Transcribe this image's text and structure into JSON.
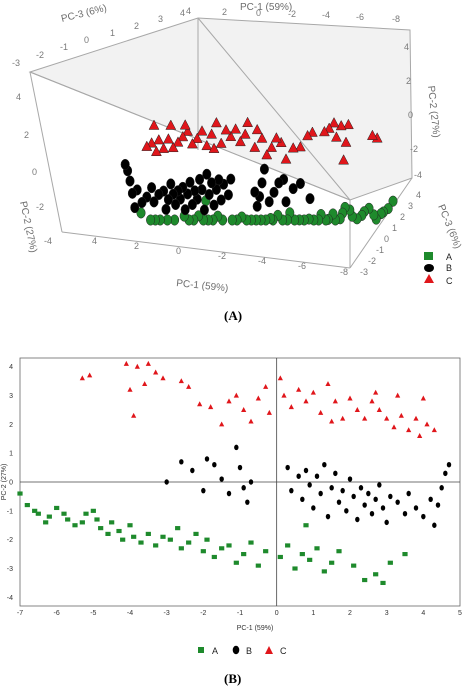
{
  "captions": {
    "a": "(A)",
    "b": "(B)"
  },
  "colors": {
    "A": "#1e8a2c",
    "B": "#000000",
    "C": "#e0161b"
  },
  "legend": [
    {
      "key": "A",
      "label": "A",
      "marker": "square"
    },
    {
      "key": "B",
      "label": "B",
      "marker": "circle"
    },
    {
      "key": "C",
      "label": "C",
      "marker": "triangle"
    }
  ],
  "chart_data": [
    {
      "type": "scatter",
      "projection": "3d",
      "axis_labels": {
        "pc1_top": "PC-1 (59%)",
        "pc1_bottom": "PC-1 (59%)",
        "pc3_top": "PC-3 (6%)",
        "pc3_right": "PC-3 (6%)",
        "pc2_left": "PC-2 (27%)",
        "pc2_right": "PC-2 (27%)"
      },
      "ticks": {
        "pc1_top": [
          "4",
          "2",
          "0",
          "-2",
          "-4",
          "-6",
          "-8"
        ],
        "pc1_bottom": [
          "4",
          "2",
          "0",
          "-2",
          "-4",
          "-6",
          "-8"
        ],
        "pc3_top": [
          "-3",
          "-2",
          "-1",
          "0",
          "1",
          "2",
          "3",
          "4"
        ],
        "pc3_right": [
          "4",
          "3",
          "2",
          "1",
          "0",
          "-1",
          "-2",
          "-3"
        ],
        "pc2_left": [
          "4",
          "2",
          "0",
          "-2",
          "-4"
        ],
        "pc2_right": [
          "4",
          "2",
          "0",
          "-2",
          "-4"
        ]
      },
      "legend_placement": "bottom-right"
    },
    {
      "type": "scatter",
      "xlabel": "PC-1 (59%)",
      "ylabel": "PC-2 (27%)",
      "xlim": [
        -7,
        5
      ],
      "ylim": [
        -4.3,
        4.3
      ],
      "xticks": [
        -7,
        -6,
        -5,
        -4,
        -3,
        -2,
        -1,
        0,
        1,
        2,
        3,
        4,
        5
      ],
      "yticks": [
        4,
        3,
        2,
        1,
        0,
        -1,
        -2,
        -3,
        -4
      ],
      "reference_lines": {
        "x": 0,
        "y": 0
      },
      "legend_placement": "bottom-center",
      "series": [
        {
          "name": "A",
          "marker": "square",
          "color": "#1e8a2c",
          "points": [
            [
              -7.0,
              -0.4
            ],
            [
              -6.8,
              -0.8
            ],
            [
              -6.6,
              -1.0
            ],
            [
              -6.5,
              -1.1
            ],
            [
              -6.3,
              -1.4
            ],
            [
              -6.2,
              -1.2
            ],
            [
              -6.0,
              -0.9
            ],
            [
              -5.8,
              -1.1
            ],
            [
              -5.7,
              -1.3
            ],
            [
              -5.5,
              -1.5
            ],
            [
              -5.3,
              -1.4
            ],
            [
              -5.2,
              -1.1
            ],
            [
              -5.0,
              -1.0
            ],
            [
              -4.9,
              -1.3
            ],
            [
              -4.8,
              -1.6
            ],
            [
              -4.6,
              -1.8
            ],
            [
              -4.5,
              -1.4
            ],
            [
              -4.3,
              -1.7
            ],
            [
              -4.2,
              -2.0
            ],
            [
              -4.0,
              -1.5
            ],
            [
              -3.9,
              -1.9
            ],
            [
              -3.7,
              -2.1
            ],
            [
              -3.5,
              -1.8
            ],
            [
              -3.3,
              -2.2
            ],
            [
              -3.1,
              -1.9
            ],
            [
              -2.9,
              -2.0
            ],
            [
              -2.7,
              -1.6
            ],
            [
              -2.6,
              -2.3
            ],
            [
              -2.4,
              -2.1
            ],
            [
              -2.2,
              -1.8
            ],
            [
              -2.0,
              -2.4
            ],
            [
              -1.9,
              -2.0
            ],
            [
              -1.7,
              -2.6
            ],
            [
              -1.5,
              -2.3
            ],
            [
              -1.3,
              -2.2
            ],
            [
              -1.1,
              -2.8
            ],
            [
              -0.9,
              -2.5
            ],
            [
              -0.7,
              -2.1
            ],
            [
              -0.5,
              -2.9
            ],
            [
              -0.3,
              -2.4
            ],
            [
              0.1,
              -2.6
            ],
            [
              0.3,
              -2.2
            ],
            [
              0.5,
              -3.0
            ],
            [
              0.7,
              -2.5
            ],
            [
              0.9,
              -2.7
            ],
            [
              1.1,
              -2.3
            ],
            [
              1.3,
              -3.1
            ],
            [
              1.5,
              -2.8
            ],
            [
              1.7,
              -2.4
            ],
            [
              2.1,
              -2.9
            ],
            [
              2.4,
              -3.4
            ],
            [
              2.7,
              -3.2
            ],
            [
              2.9,
              -3.5
            ],
            [
              3.1,
              -2.8
            ],
            [
              3.5,
              -2.5
            ],
            [
              0.8,
              -1.5
            ]
          ]
        },
        {
          "name": "B",
          "marker": "circle",
          "color": "#000000",
          "points": [
            [
              -3.0,
              0.0
            ],
            [
              -2.6,
              0.7
            ],
            [
              -2.3,
              0.4
            ],
            [
              -2.0,
              -0.3
            ],
            [
              -1.9,
              0.8
            ],
            [
              -1.7,
              0.6
            ],
            [
              -1.5,
              0.1
            ],
            [
              -1.3,
              -0.4
            ],
            [
              -1.1,
              1.2
            ],
            [
              -1.0,
              0.5
            ],
            [
              -0.9,
              -0.2
            ],
            [
              -0.8,
              -0.7
            ],
            [
              -0.7,
              0.0
            ],
            [
              0.3,
              0.5
            ],
            [
              0.4,
              -0.3
            ],
            [
              0.6,
              0.2
            ],
            [
              0.7,
              -0.6
            ],
            [
              0.8,
              0.4
            ],
            [
              0.9,
              -0.1
            ],
            [
              1.0,
              -0.9
            ],
            [
              1.1,
              0.2
            ],
            [
              1.2,
              -0.4
            ],
            [
              1.3,
              0.6
            ],
            [
              1.4,
              -1.2
            ],
            [
              1.5,
              -0.2
            ],
            [
              1.6,
              0.3
            ],
            [
              1.7,
              -0.7
            ],
            [
              1.8,
              -0.3
            ],
            [
              1.9,
              -1.0
            ],
            [
              2.0,
              0.1
            ],
            [
              2.1,
              -0.5
            ],
            [
              2.2,
              -1.3
            ],
            [
              2.3,
              -0.2
            ],
            [
              2.4,
              -0.8
            ],
            [
              2.5,
              -0.4
            ],
            [
              2.6,
              -1.1
            ],
            [
              2.7,
              -0.6
            ],
            [
              2.8,
              -0.1
            ],
            [
              2.9,
              -0.9
            ],
            [
              3.0,
              -1.4
            ],
            [
              3.1,
              -0.5
            ],
            [
              3.3,
              -0.7
            ],
            [
              3.5,
              -1.1
            ],
            [
              3.6,
              -0.4
            ],
            [
              3.8,
              -0.9
            ],
            [
              4.0,
              -1.2
            ],
            [
              4.2,
              -0.6
            ],
            [
              4.3,
              -1.5
            ],
            [
              4.4,
              -0.8
            ],
            [
              4.5,
              -0.2
            ],
            [
              4.6,
              0.3
            ],
            [
              4.7,
              0.6
            ]
          ]
        },
        {
          "name": "C",
          "marker": "triangle",
          "color": "#e0161b",
          "points": [
            [
              -5.3,
              3.6
            ],
            [
              -5.1,
              3.7
            ],
            [
              -4.1,
              4.1
            ],
            [
              -3.8,
              4.0
            ],
            [
              -3.5,
              4.1
            ],
            [
              -3.3,
              3.8
            ],
            [
              -3.1,
              3.6
            ],
            [
              -4.0,
              3.2
            ],
            [
              -3.6,
              3.4
            ],
            [
              -2.6,
              3.5
            ],
            [
              -2.4,
              3.3
            ],
            [
              -3.9,
              2.3
            ],
            [
              -2.1,
              2.7
            ],
            [
              -1.8,
              2.6
            ],
            [
              -1.5,
              2.0
            ],
            [
              -1.3,
              2.8
            ],
            [
              -1.1,
              3.0
            ],
            [
              -0.9,
              2.5
            ],
            [
              -0.7,
              2.1
            ],
            [
              -0.5,
              2.9
            ],
            [
              -0.3,
              3.3
            ],
            [
              -0.2,
              2.4
            ],
            [
              0.1,
              3.6
            ],
            [
              0.2,
              3.0
            ],
            [
              0.4,
              2.6
            ],
            [
              0.6,
              3.2
            ],
            [
              0.8,
              2.8
            ],
            [
              1.0,
              3.1
            ],
            [
              1.2,
              2.4
            ],
            [
              1.4,
              3.4
            ],
            [
              1.6,
              2.8
            ],
            [
              1.8,
              2.2
            ],
            [
              2.0,
              2.9
            ],
            [
              2.2,
              2.5
            ],
            [
              2.4,
              2.2
            ],
            [
              2.6,
              2.8
            ],
            [
              2.8,
              2.5
            ],
            [
              3.0,
              2.2
            ],
            [
              3.2,
              1.9
            ],
            [
              3.4,
              2.3
            ],
            [
              3.6,
              1.8
            ],
            [
              3.8,
              2.2
            ],
            [
              3.9,
              1.6
            ],
            [
              4.1,
              2.0
            ],
            [
              4.3,
              1.8
            ],
            [
              1.5,
              2.1
            ],
            [
              2.7,
              3.1
            ],
            [
              3.3,
              3.0
            ],
            [
              4.0,
              2.9
            ]
          ]
        }
      ]
    }
  ]
}
